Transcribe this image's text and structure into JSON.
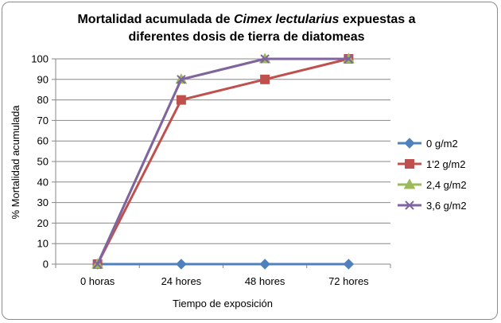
{
  "chart_data": {
    "type": "line",
    "title": {
      "prefix": "Mortalidad acumulada de ",
      "species": "Cimex lectularius",
      "suffix": " expuestas a",
      "line2": "diferentes dosis de tierra de diatomeas"
    },
    "xlabel": "Tiempo de exposición",
    "ylabel": "% Mortalidad acumulada",
    "categories": [
      "0 horas",
      "24 hores",
      "48 hores",
      "72 hores"
    ],
    "ylim": [
      0,
      100
    ],
    "yticks": [
      0,
      10,
      20,
      30,
      40,
      50,
      60,
      70,
      80,
      90,
      100
    ],
    "grid": true,
    "legend_position": "right",
    "series": [
      {
        "name": "0 g/m2",
        "color": "#4f81bd",
        "marker": "diamond",
        "values": [
          0,
          0,
          0,
          0
        ]
      },
      {
        "name": "1'2 g/m2",
        "color": "#c0504d",
        "marker": "square",
        "values": [
          0,
          80,
          90,
          100
        ]
      },
      {
        "name": "2,4 g/m2",
        "color": "#9bbb59",
        "marker": "triangle",
        "values": [
          0,
          90,
          100,
          100
        ]
      },
      {
        "name": "3,6 g/m2",
        "color": "#8064a2",
        "marker": "x",
        "values": [
          0,
          90,
          100,
          100
        ]
      }
    ]
  }
}
